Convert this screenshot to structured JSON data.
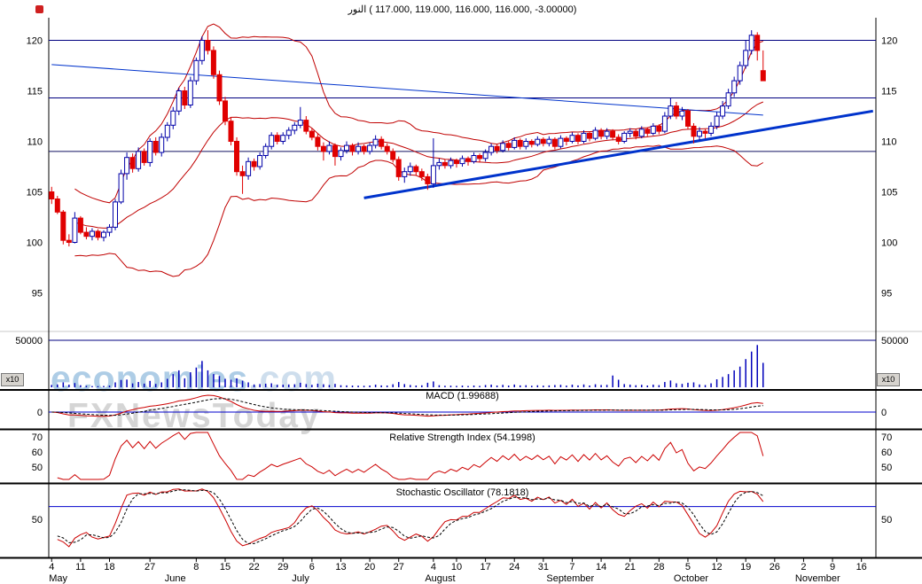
{
  "title": {
    "text": "النور ‎( 117.000, 119.000, 116.000, 116.000, -3.00000)"
  },
  "watermark": {
    "line1_main": "economies",
    "line1_suffix": ".com",
    "line2": "FXNewsToday"
  },
  "colors": {
    "up_candle": "#0000a8",
    "down_candle": "#e00000",
    "band": "#c00000",
    "trendline_blue": "#0033cc",
    "annotation_navy": "#000080",
    "volume_bar": "#0000bb",
    "volume_line": "#000080",
    "macd_line": "#cc0000",
    "signal_line": "#000000",
    "rsi_line": "#cc0000",
    "stoch_k": "#cc0000",
    "stoch_d": "#000000",
    "level_line_blue": "#0000cc",
    "axis_text": "#000000"
  },
  "chart_data": {
    "type": "candlestick+indicators",
    "title": "النور ( 117.000, 119.000, 116.000, 116.000, -3.00000)",
    "price_axis": {
      "ticks": [
        120,
        115,
        110,
        105,
        100,
        95
      ],
      "range": [
        93,
        122
      ]
    },
    "x_axis": {
      "total_slots": 143,
      "day_ticks": [
        [
          0,
          "4"
        ],
        [
          5,
          "11"
        ],
        [
          10,
          "18"
        ],
        [
          17,
          "27"
        ],
        [
          25,
          "8"
        ],
        [
          30,
          "15"
        ],
        [
          35,
          "22"
        ],
        [
          40,
          "29"
        ],
        [
          45,
          "6"
        ],
        [
          50,
          "13"
        ],
        [
          55,
          "20"
        ],
        [
          60,
          "27"
        ],
        [
          66,
          "4"
        ],
        [
          70,
          "10"
        ],
        [
          75,
          "17"
        ],
        [
          80,
          "24"
        ],
        [
          85,
          "31"
        ],
        [
          90,
          "7"
        ],
        [
          95,
          "14"
        ],
        [
          100,
          "21"
        ],
        [
          105,
          "28"
        ],
        [
          110,
          "5"
        ],
        [
          115,
          "12"
        ],
        [
          120,
          "19"
        ],
        [
          125,
          "26"
        ],
        [
          130,
          "2"
        ],
        [
          135,
          "9"
        ],
        [
          140,
          "16"
        ]
      ],
      "month_ticks": [
        [
          0,
          "May"
        ],
        [
          20,
          "June"
        ],
        [
          42,
          "July"
        ],
        [
          65,
          "August"
        ],
        [
          86,
          "September"
        ],
        [
          108,
          "October"
        ],
        [
          129,
          "November"
        ]
      ]
    },
    "panels": {
      "volume": {
        "axis_label": "50000",
        "axis_value": 50000,
        "multiplier_label": "x10"
      },
      "macd": {
        "label": "MACD (1.99688)",
        "zero_label": "0",
        "params": [
          12,
          26,
          9
        ]
      },
      "rsi": {
        "label": "Relative Strength Index (54.1998)",
        "ticks": [
          70,
          60,
          50
        ],
        "period": 14
      },
      "stoch": {
        "label": "Stochastic Oscillator (78.1818)",
        "ticks": [
          50
        ],
        "level_line": 70,
        "params": [
          14,
          3,
          3
        ]
      }
    },
    "indicators": {
      "bollinger_period": 20,
      "bollinger_dev": 2
    },
    "annotations": {
      "horizontal_lines": [
        {
          "value": 120.0,
          "color": "#000080"
        },
        {
          "value": 114.3,
          "color": "#000080"
        },
        {
          "value": 109.0,
          "color": "#101060"
        }
      ],
      "trendlines": [
        {
          "from_slot": 0,
          "from_value": 117.6,
          "to_slot": 123,
          "to_value": 112.6,
          "color": "#0033cc",
          "width": 1
        },
        {
          "from_slot": 54,
          "from_value": 104.4,
          "to_slot": 142,
          "to_value": 113.0,
          "color": "#0033cc",
          "width": 3
        }
      ]
    },
    "candles": [
      [
        105.0,
        105.5,
        103.8,
        104.3,
        2500
      ],
      [
        104.3,
        104.6,
        102.8,
        103.0,
        3000
      ],
      [
        103.0,
        103.2,
        99.8,
        100.2,
        5200
      ],
      [
        100.2,
        100.8,
        99.6,
        100.0,
        2800
      ],
      [
        100.0,
        103.0,
        99.9,
        102.4,
        4500
      ],
      [
        102.4,
        102.6,
        100.8,
        101.0,
        2200
      ],
      [
        101.0,
        101.5,
        100.3,
        100.6,
        1500
      ],
      [
        100.6,
        101.4,
        100.2,
        101.1,
        1300
      ],
      [
        101.1,
        101.3,
        100.2,
        100.5,
        1200
      ],
      [
        100.5,
        101.2,
        100.1,
        101.0,
        1400
      ],
      [
        101.0,
        101.8,
        100.6,
        101.5,
        1800
      ],
      [
        101.5,
        104.3,
        101.2,
        104.0,
        5200
      ],
      [
        104.0,
        107.2,
        103.8,
        106.8,
        7800
      ],
      [
        106.8,
        108.9,
        106.2,
        108.4,
        8200
      ],
      [
        108.4,
        108.8,
        106.9,
        107.3,
        4100
      ],
      [
        107.3,
        109.4,
        107.0,
        109.0,
        5600
      ],
      [
        109.0,
        109.3,
        107.6,
        107.9,
        3900
      ],
      [
        107.9,
        110.3,
        107.5,
        110.0,
        6800
      ],
      [
        110.0,
        110.4,
        108.6,
        108.9,
        3600
      ],
      [
        108.9,
        110.8,
        108.5,
        110.4,
        5200
      ],
      [
        110.4,
        111.9,
        110.0,
        111.6,
        9000
      ],
      [
        111.6,
        113.4,
        111.2,
        113.0,
        14000
      ],
      [
        113.0,
        115.3,
        112.6,
        115.0,
        18000
      ],
      [
        115.0,
        115.4,
        113.2,
        113.6,
        9500
      ],
      [
        113.6,
        116.4,
        113.3,
        116.0,
        16000
      ],
      [
        116.0,
        118.3,
        115.6,
        118.0,
        21000
      ],
      [
        118.0,
        120.4,
        117.6,
        120.0,
        28000
      ],
      [
        120.0,
        121.0,
        118.6,
        119.0,
        18000
      ],
      [
        119.0,
        119.4,
        116.2,
        116.6,
        14000
      ],
      [
        116.6,
        117.0,
        113.6,
        114.0,
        12000
      ],
      [
        114.0,
        114.4,
        111.6,
        112.0,
        9000
      ],
      [
        112.0,
        112.4,
        109.6,
        110.0,
        8000
      ],
      [
        110.0,
        110.4,
        106.6,
        107.0,
        9500
      ],
      [
        107.0,
        107.6,
        104.8,
        106.6,
        7000
      ],
      [
        106.6,
        108.4,
        106.2,
        108.0,
        5200
      ],
      [
        108.0,
        108.3,
        107.1,
        107.5,
        3000
      ],
      [
        107.5,
        108.9,
        107.2,
        108.6,
        3400
      ],
      [
        108.6,
        109.8,
        108.3,
        109.5,
        3800
      ],
      [
        109.5,
        110.9,
        109.2,
        110.6,
        4200
      ],
      [
        110.6,
        110.9,
        109.7,
        110.0,
        2600
      ],
      [
        110.0,
        110.9,
        109.7,
        110.6,
        2800
      ],
      [
        110.6,
        111.4,
        110.2,
        111.1,
        3000
      ],
      [
        111.1,
        111.9,
        110.7,
        111.6,
        3200
      ],
      [
        111.6,
        113.4,
        111.3,
        112.1,
        4800
      ],
      [
        112.1,
        112.5,
        110.7,
        111.0,
        3400
      ],
      [
        111.0,
        111.3,
        110.1,
        110.4,
        2600
      ],
      [
        110.4,
        110.8,
        109.1,
        109.5,
        3800
      ],
      [
        109.5,
        109.9,
        108.1,
        109.0,
        3200
      ],
      [
        109.0,
        110.0,
        108.7,
        109.6,
        2400
      ],
      [
        109.6,
        109.8,
        107.6,
        108.5,
        3600
      ],
      [
        108.5,
        109.4,
        108.1,
        109.1,
        2200
      ],
      [
        109.1,
        110.0,
        108.8,
        109.6,
        2000
      ],
      [
        109.6,
        109.8,
        108.6,
        109.0,
        1800
      ],
      [
        109.0,
        109.9,
        108.7,
        109.5,
        1700
      ],
      [
        109.5,
        109.7,
        108.7,
        109.0,
        1600
      ],
      [
        109.0,
        109.9,
        108.7,
        109.6,
        1900
      ],
      [
        109.6,
        110.6,
        109.3,
        110.2,
        2800
      ],
      [
        110.2,
        110.5,
        109.2,
        109.5,
        2000
      ],
      [
        109.5,
        109.8,
        108.7,
        109.0,
        1900
      ],
      [
        109.0,
        109.3,
        107.9,
        108.2,
        3200
      ],
      [
        108.2,
        108.5,
        106.1,
        106.5,
        5600
      ],
      [
        106.5,
        107.4,
        105.9,
        107.0,
        3400
      ],
      [
        107.0,
        107.9,
        106.6,
        107.5,
        2400
      ],
      [
        107.5,
        107.7,
        106.6,
        107.0,
        1900
      ],
      [
        107.0,
        107.3,
        106.1,
        106.5,
        2100
      ],
      [
        106.5,
        106.8,
        105.2,
        105.8,
        4800
      ],
      [
        105.8,
        110.3,
        105.4,
        107.6,
        6200
      ],
      [
        107.6,
        108.3,
        107.2,
        107.9,
        2200
      ],
      [
        107.9,
        108.2,
        107.3,
        107.6,
        1600
      ],
      [
        107.6,
        108.4,
        107.3,
        108.1,
        1700
      ],
      [
        108.1,
        108.3,
        107.4,
        107.8,
        1500
      ],
      [
        107.8,
        108.6,
        107.5,
        108.3,
        1800
      ],
      [
        108.3,
        108.5,
        107.6,
        108.0,
        1400
      ],
      [
        108.0,
        108.9,
        107.8,
        108.6,
        1900
      ],
      [
        108.6,
        108.8,
        107.9,
        108.3,
        1500
      ],
      [
        108.3,
        109.2,
        108.0,
        108.9,
        2400
      ],
      [
        108.9,
        109.8,
        108.6,
        109.5,
        2800
      ],
      [
        109.5,
        109.7,
        108.8,
        109.1,
        1900
      ],
      [
        109.1,
        110.1,
        108.9,
        109.8,
        2600
      ],
      [
        109.8,
        110.0,
        109.1,
        109.4,
        1800
      ],
      [
        109.4,
        110.4,
        109.2,
        110.1,
        2900
      ],
      [
        110.1,
        110.3,
        109.2,
        109.5,
        2000
      ],
      [
        109.5,
        110.3,
        109.2,
        110.0,
        2200
      ],
      [
        110.0,
        110.2,
        109.4,
        109.7,
        1600
      ],
      [
        109.7,
        110.5,
        109.5,
        110.2,
        2100
      ],
      [
        110.2,
        110.4,
        109.5,
        109.8,
        1700
      ],
      [
        109.8,
        110.5,
        109.5,
        110.2,
        2000
      ],
      [
        110.2,
        110.4,
        109.2,
        109.5,
        2400
      ],
      [
        109.5,
        110.6,
        109.3,
        110.3,
        2600
      ],
      [
        110.3,
        110.5,
        109.6,
        110.0,
        1800
      ],
      [
        110.0,
        110.9,
        109.8,
        110.6,
        2800
      ],
      [
        110.6,
        110.8,
        109.7,
        110.0,
        2000
      ],
      [
        110.0,
        111.1,
        109.8,
        110.8,
        3000
      ],
      [
        110.8,
        111.0,
        110.0,
        110.3,
        1900
      ],
      [
        110.3,
        111.4,
        110.1,
        111.1,
        3200
      ],
      [
        111.1,
        111.3,
        110.2,
        110.5,
        2400
      ],
      [
        110.5,
        111.3,
        110.2,
        111.0,
        2600
      ],
      [
        111.0,
        111.2,
        110.1,
        110.4,
        12500
      ],
      [
        110.4,
        110.7,
        109.7,
        110.0,
        8000
      ],
      [
        110.0,
        111.0,
        109.8,
        110.8,
        3400
      ],
      [
        110.8,
        111.3,
        110.4,
        111.0,
        2800
      ],
      [
        111.0,
        111.2,
        110.2,
        110.5,
        2200
      ],
      [
        110.5,
        111.5,
        110.3,
        111.2,
        2600
      ],
      [
        111.2,
        111.4,
        110.5,
        110.8,
        1900
      ],
      [
        110.8,
        111.8,
        110.6,
        111.5,
        2800
      ],
      [
        111.5,
        111.7,
        110.7,
        111.0,
        2300
      ],
      [
        111.0,
        112.9,
        110.8,
        112.5,
        5600
      ],
      [
        112.5,
        114.3,
        112.2,
        113.5,
        7200
      ],
      [
        113.5,
        113.9,
        112.2,
        112.5,
        4200
      ],
      [
        112.5,
        113.4,
        112.1,
        113.0,
        3600
      ],
      [
        113.0,
        113.2,
        111.2,
        111.5,
        4800
      ],
      [
        111.5,
        111.8,
        109.8,
        110.5,
        5200
      ],
      [
        110.5,
        111.4,
        110.1,
        111.0,
        3000
      ],
      [
        111.0,
        111.2,
        110.3,
        110.8,
        2400
      ],
      [
        110.8,
        111.9,
        110.5,
        111.5,
        4200
      ],
      [
        111.5,
        112.9,
        111.2,
        112.5,
        8500
      ],
      [
        112.5,
        114.0,
        112.2,
        113.5,
        11000
      ],
      [
        113.5,
        115.2,
        113.2,
        114.8,
        14000
      ],
      [
        114.8,
        116.4,
        114.4,
        116.0,
        18000
      ],
      [
        116.0,
        117.9,
        115.6,
        117.5,
        22000
      ],
      [
        117.5,
        120.0,
        117.2,
        119.0,
        30000
      ],
      [
        119.0,
        121.0,
        118.6,
        120.5,
        38000
      ],
      [
        120.5,
        120.8,
        118.0,
        119.0,
        45000
      ],
      [
        117.0,
        119.0,
        116.0,
        116.0,
        26000
      ]
    ]
  }
}
